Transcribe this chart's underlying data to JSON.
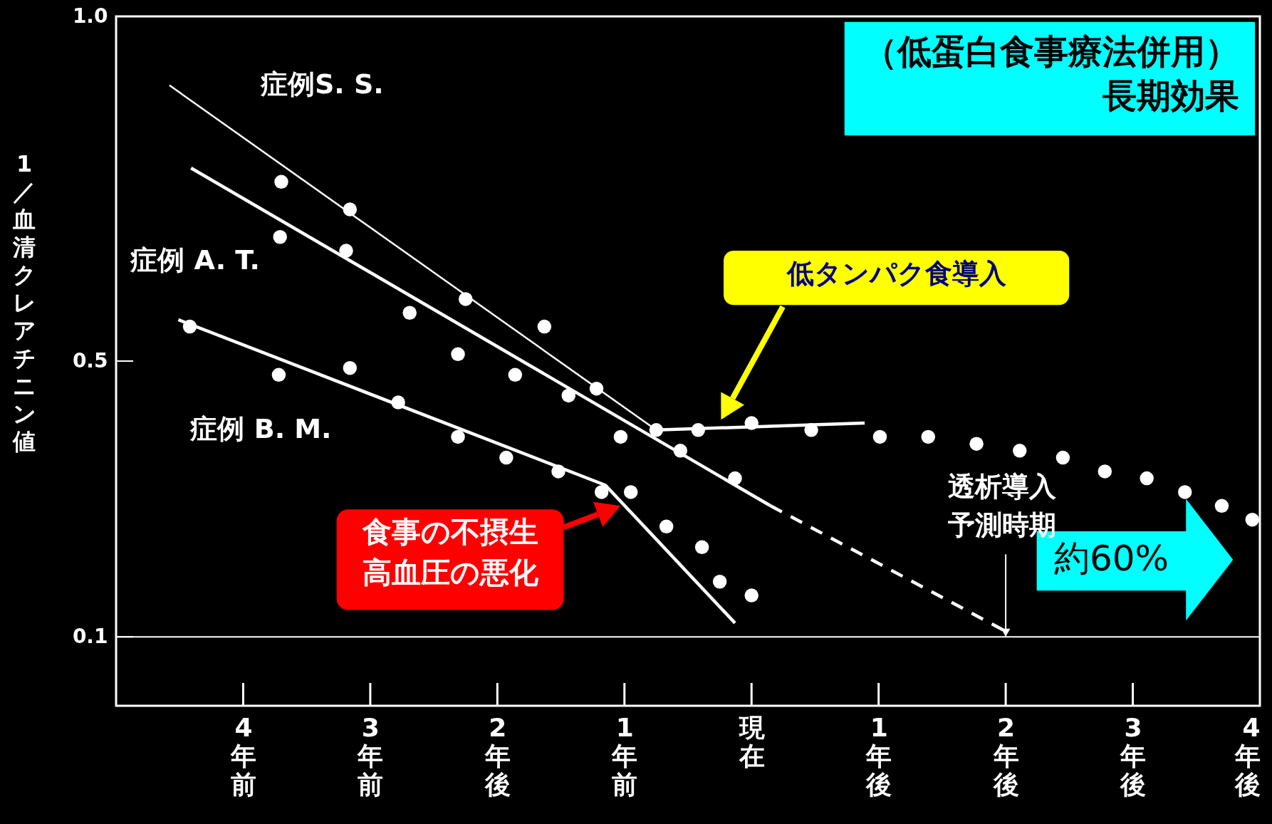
{
  "chart_data": {
    "type": "scatter",
    "ylabel": "1／血清クレアチニン値",
    "annotations": [
      "（低蛋白食事療法併用）長期効果",
      "低タンパク食導入",
      "食事の不摂生高血圧の悪化",
      {
        "text": "透析導入予測時期",
        "x": 2,
        "y": 0.1
      },
      "約60%"
    ],
    "xlim": [
      -5,
      4
    ],
    "xticks": [
      {
        "value": -4,
        "label": "4年前"
      },
      {
        "value": -3,
        "label": "3年前"
      },
      {
        "value": -2,
        "label": "2年後"
      },
      {
        "value": -1,
        "label": "1年前"
      },
      {
        "value": 0,
        "label": "現在"
      },
      {
        "value": 1,
        "label": "1年後"
      },
      {
        "value": 2,
        "label": "2年後"
      },
      {
        "value": 3,
        "label": "3年後"
      },
      {
        "value": 4,
        "label": "4年後"
      }
    ],
    "ylim": [
      0,
      1
    ],
    "yticks": [
      0.1,
      0.5,
      {
        "value": 1,
        "label": "1.0"
      }
    ],
    "ref_lines": [
      {
        "axis": "y",
        "value": 0.1,
        "color": "#ffffff"
      }
    ],
    "series": [
      {
        "color": "#ffffff",
        "marker": "circle",
        "x": [
          -3.7,
          -3.16,
          -3.71,
          -3.19,
          -2.69,
          -2.25,
          -1.63,
          -2.31,
          -1.86,
          -1.44,
          -1.22,
          -4.42,
          -3.72,
          -3.16,
          -2.78,
          -2.31,
          -1.93,
          -1.52,
          -1.18,
          -1.03,
          -0.95,
          -0.75,
          -0.56,
          -0.42,
          0.0,
          -0.13,
          -0.67,
          -0.39,
          -0.25,
          0.0,
          0.47,
          1.01,
          1.39,
          1.77,
          2.11,
          2.45,
          2.78,
          3.11,
          3.41,
          3.7,
          3.94
        ],
        "values": [
          0.76,
          0.72,
          0.68,
          0.66,
          0.57,
          0.59,
          0.55,
          0.51,
          0.48,
          0.45,
          0.46,
          0.55,
          0.48,
          0.49,
          0.44,
          0.39,
          0.36,
          0.34,
          0.31,
          0.39,
          0.31,
          0.4,
          0.37,
          0.4,
          0.41,
          0.33,
          0.26,
          0.23,
          0.18,
          0.16,
          0.4,
          0.39,
          0.39,
          0.38,
          0.37,
          0.36,
          0.34,
          0.33,
          0.31,
          0.29,
          0.27
        ]
      },
      {
        "type": "line",
        "name": "症例S. S.",
        "color": "#ffffff",
        "line_style": "solid",
        "x": [
          -4.58,
          -0.75
        ],
        "values": [
          0.9,
          0.4
        ]
      },
      {
        "type": "line",
        "name": "症例 A. T.",
        "color": "#ffffff",
        "line_style": "solid",
        "x": [
          -4.41,
          0.15
        ],
        "values": [
          0.78,
          0.29
        ]
      },
      {
        "type": "line",
        "color": "#ffffff",
        "line_style": "dashed",
        "x": [
          0.15,
          1.98
        ],
        "values": [
          0.29,
          0.11
        ]
      },
      {
        "type": "line",
        "name": "症例 B. M.",
        "color": "#ffffff",
        "line_style": "solid",
        "x": [
          -4.51,
          -1.15,
          -0.13
        ],
        "values": [
          0.56,
          0.32,
          0.12
        ]
      },
      {
        "type": "line",
        "color": "#ffffff",
        "line_style": "solid",
        "x": [
          -0.75,
          0.89
        ],
        "values": [
          0.4,
          0.41
        ]
      }
    ]
  }
}
